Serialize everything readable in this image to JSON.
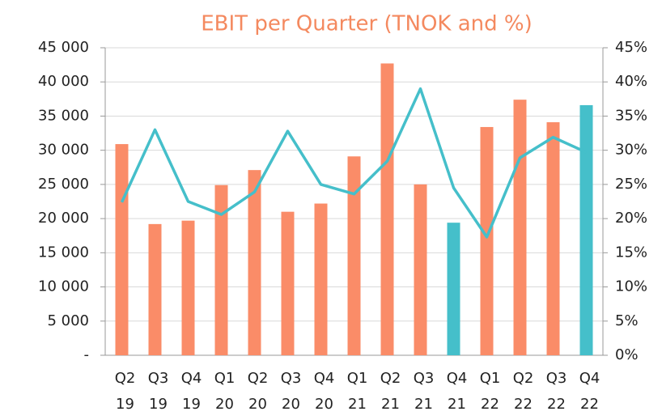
{
  "chart_data": {
    "type": "bar_line",
    "title": "EBIT per Quarter (TNOK and %)",
    "categories": [
      "Q2 19",
      "Q3 19",
      "Q4 19",
      "Q1 20",
      "Q2 20",
      "Q3 20",
      "Q4 20",
      "Q1 21",
      "Q2 21",
      "Q3 21",
      "Q4 21",
      "Q1 22",
      "Q2 22",
      "Q3 22",
      "Q4 22"
    ],
    "series": [
      {
        "kind": "bar",
        "colors": [
          "#fa8c68",
          "#fa8c68",
          "#fa8c68",
          "#fa8c68",
          "#fa8c68",
          "#fa8c68",
          "#fa8c68",
          "#fa8c68",
          "#fa8c68",
          "#fa8c68",
          "#45bfca",
          "#fa8c68",
          "#fa8c68",
          "#fa8c68",
          "#45bfca"
        ],
        "values": [
          30900,
          19200,
          19700,
          24900,
          27100,
          21000,
          22200,
          29100,
          42700,
          25000,
          19400,
          33400,
          37400,
          34100,
          36600
        ]
      },
      {
        "kind": "line",
        "axis": "y2",
        "color": "#45bfca",
        "values": [
          22.4,
          33.0,
          22.5,
          20.6,
          23.9,
          32.8,
          25.0,
          23.6,
          28.4,
          39.0,
          24.5,
          17.3,
          28.9,
          31.9,
          29.7
        ]
      }
    ],
    "ylim": [
      0,
      45000
    ],
    "yticks": [
      {
        "value": 0,
        "label": "-"
      },
      {
        "value": 5000,
        "label": "5 000"
      },
      {
        "value": 10000,
        "label": "10 000"
      },
      {
        "value": 15000,
        "label": "15 000"
      },
      {
        "value": 20000,
        "label": "20 000"
      },
      {
        "value": 25000,
        "label": "25 000"
      },
      {
        "value": 30000,
        "label": "30 000"
      },
      {
        "value": 35000,
        "label": "35 000"
      },
      {
        "value": 40000,
        "label": "40 000"
      },
      {
        "value": 45000,
        "label": "45 000"
      }
    ],
    "y2lim": [
      0,
      45
    ],
    "y2ticks": [
      {
        "value": 0,
        "label": "0%"
      },
      {
        "value": 5,
        "label": "5%"
      },
      {
        "value": 10,
        "label": "10%"
      },
      {
        "value": 15,
        "label": "15%"
      },
      {
        "value": 20,
        "label": "20%"
      },
      {
        "value": 25,
        "label": "25%"
      },
      {
        "value": 30,
        "label": "30%"
      },
      {
        "value": 35,
        "label": "35%"
      },
      {
        "value": 40,
        "label": "40%"
      },
      {
        "value": 45,
        "label": "45%"
      }
    ]
  }
}
